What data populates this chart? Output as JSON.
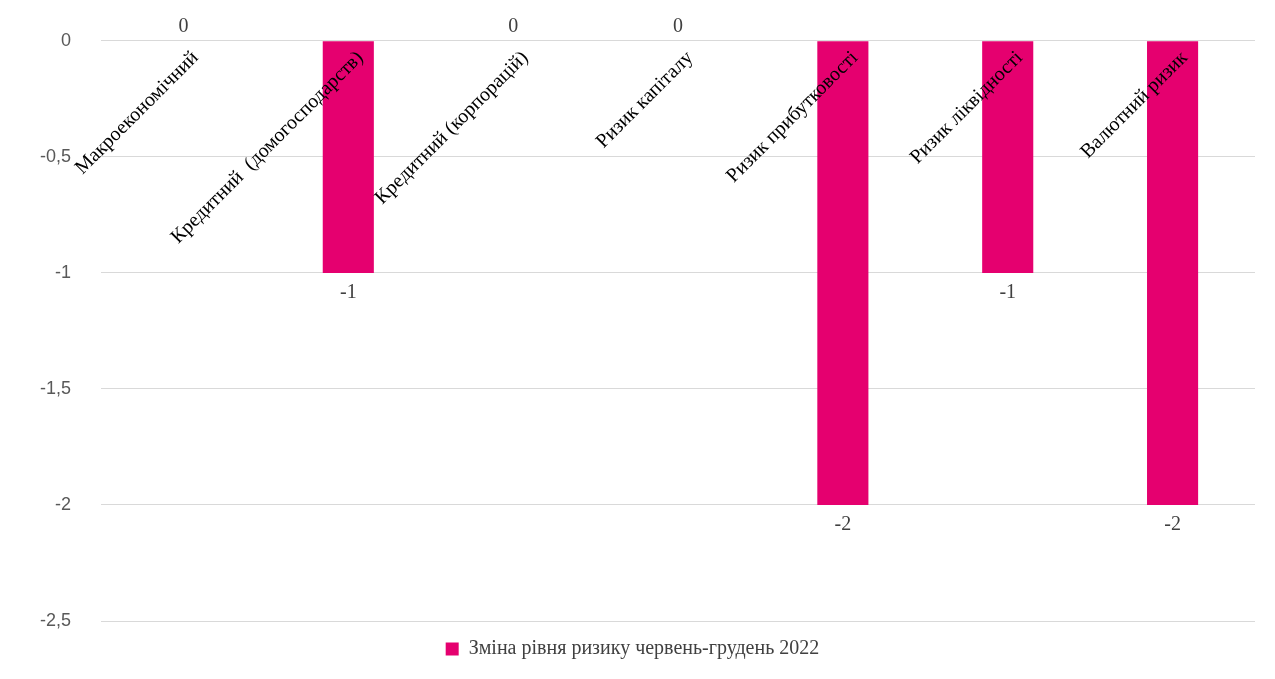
{
  "chart_data": {
    "type": "bar",
    "categories": [
      "Макроекономічний",
      "Кредитний  (домогосподарств)",
      "Кредитний (корпорацій)",
      "Ризик капіталу",
      "Ризик прибутковості",
      "Ризик ліквідності",
      "Валютний ризик"
    ],
    "series": [
      {
        "name": "Зміна рівня ризику червень-грудень 2022",
        "color": "#e5006f",
        "values": [
          0,
          -1,
          0,
          0,
          -2,
          -1,
          -2
        ]
      }
    ],
    "ylim": [
      -2.5,
      0
    ],
    "yticks": [
      0,
      {
        "value": -0.5,
        "label": "-0,5"
      },
      -1,
      {
        "value": -1.5,
        "label": "-1,5"
      },
      -2,
      {
        "value": -2.5,
        "label": "-2,5"
      }
    ],
    "grid": "y",
    "legend": "bottom",
    "data_labels": true
  }
}
